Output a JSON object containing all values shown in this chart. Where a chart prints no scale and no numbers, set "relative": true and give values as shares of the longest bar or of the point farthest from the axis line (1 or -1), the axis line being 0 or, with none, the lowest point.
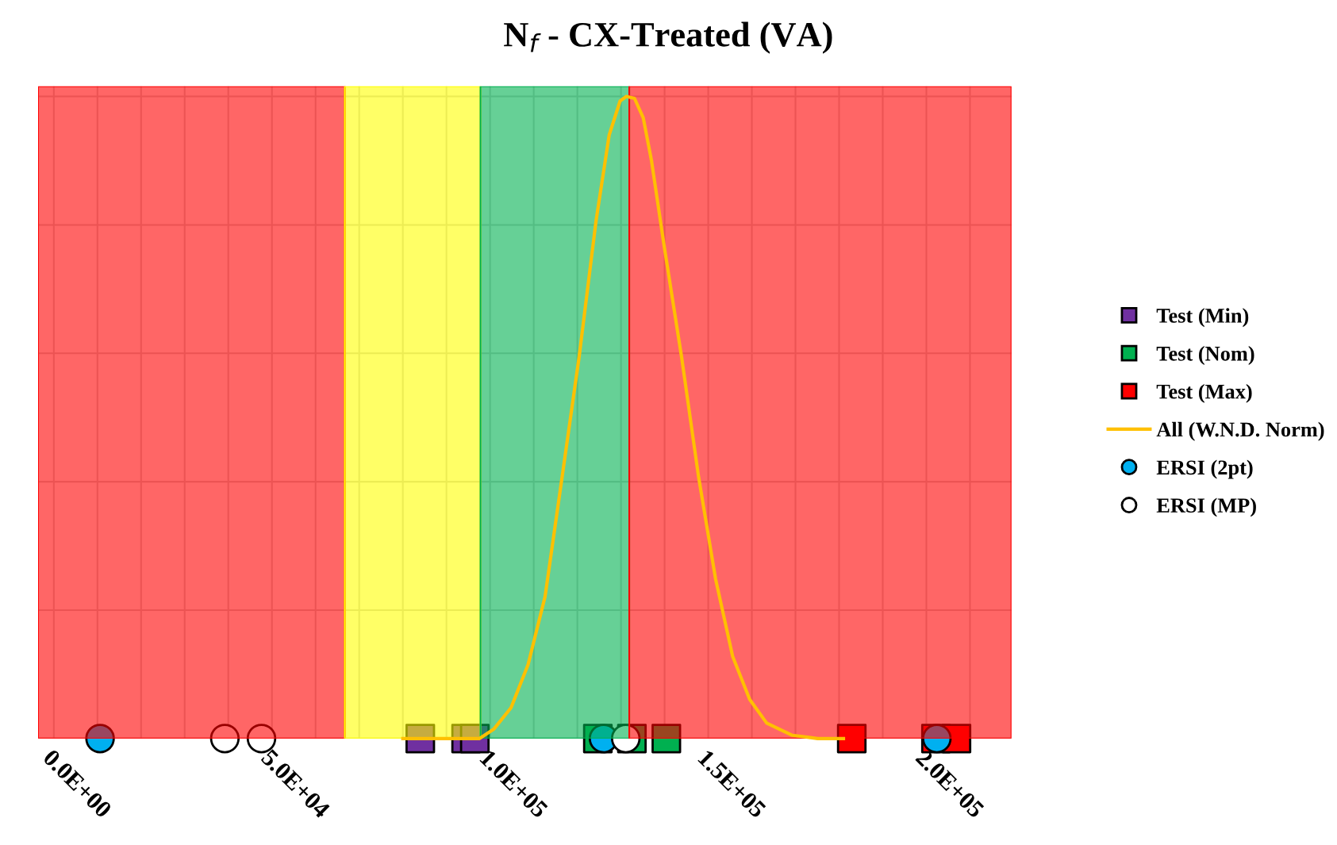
{
  "chart_data": {
    "type": "scatter",
    "title": "N$_{f}$ - CX-Treated (VA)",
    "relative": true,
    "xlim": [
      -3600,
      219500
    ],
    "xticks": [
      {
        "value": 0,
        "label": "0.0E+00"
      },
      {
        "value": 10000,
        "label": null
      },
      {
        "value": 20000,
        "label": null
      },
      {
        "value": 30000,
        "label": null
      },
      {
        "value": 40000,
        "label": null
      },
      {
        "value": 50000,
        "label": "5.0E+04"
      },
      {
        "value": 60000,
        "label": null
      },
      {
        "value": 70000,
        "label": null
      },
      {
        "value": 80000,
        "label": null
      },
      {
        "value": 90000,
        "label": null
      },
      {
        "value": 100000,
        "label": "1.0E+05"
      },
      {
        "value": 110000,
        "label": null
      },
      {
        "value": 120000,
        "label": null
      },
      {
        "value": 130000,
        "label": null
      },
      {
        "value": 140000,
        "label": null
      },
      {
        "value": 150000,
        "label": "1.5E+05"
      },
      {
        "value": 160000,
        "label": null
      },
      {
        "value": 170000,
        "label": null
      },
      {
        "value": 180000,
        "label": null
      },
      {
        "value": 190000,
        "label": null
      },
      {
        "value": 200000,
        "label": "2.0E+05"
      },
      {
        "value": 210000,
        "label": null
      }
    ],
    "grid": true,
    "legend": "right",
    "bands": [
      {
        "axis": "x",
        "from": -3600,
        "to": 66700,
        "color": "#ff0000"
      },
      {
        "axis": "x",
        "from": 66700,
        "to": 97800,
        "color": "#ffff00"
      },
      {
        "axis": "x",
        "from": 97800,
        "to": 131900,
        "color": "#00b050"
      },
      {
        "axis": "x",
        "from": 131900,
        "to": 219500,
        "color": "#ff0000"
      }
    ],
    "series": [
      {
        "name": "Test (Min)",
        "marker": "square",
        "color": "#7030a0",
        "x": [
          84000,
          94500,
          96500
        ],
        "values": [
          0,
          0,
          0
        ]
      },
      {
        "name": "Test (Nom)",
        "marker": "square",
        "color": "#00b050",
        "x": [
          124700,
          132500,
          140400
        ],
        "values": [
          0,
          0,
          0
        ]
      },
      {
        "name": "Test (Max)",
        "marker": "square",
        "color": "#ff0000",
        "x": [
          182900,
          202200,
          206900
        ],
        "values": [
          0,
          0,
          0
        ]
      },
      {
        "name": "All (W.N.D. Norm)",
        "type": "line",
        "marker": "none",
        "color": "#ffc000",
        "x": [
          80000,
          97600,
          100900,
          104800,
          108700,
          112600,
          116500,
          120400,
          124300,
          127300,
          129800,
          131200,
          133100,
          135100,
          137000,
          139900,
          143900,
          147800,
          151700,
          155600,
          159500,
          163400,
          169300,
          175100,
          181000
        ],
        "values": [
          0,
          0,
          0.015,
          0.048,
          0.115,
          0.221,
          0.407,
          0.594,
          0.807,
          0.94,
          0.993,
          1,
          0.997,
          0.967,
          0.9,
          0.767,
          0.594,
          0.407,
          0.248,
          0.128,
          0.061,
          0.024,
          0.005,
          0,
          0
        ]
      },
      {
        "name": "ERSI (2pt)",
        "marker": "circle",
        "color": "#00b0f0",
        "x": [
          10600,
          126000,
          202400
        ],
        "values": [
          0,
          0,
          0
        ]
      },
      {
        "name": "ERSI (MP)",
        "marker": "circle",
        "color": "#ffffff",
        "x": [
          39200,
          47600,
          131100
        ],
        "values": [
          0,
          0,
          0
        ]
      }
    ]
  }
}
